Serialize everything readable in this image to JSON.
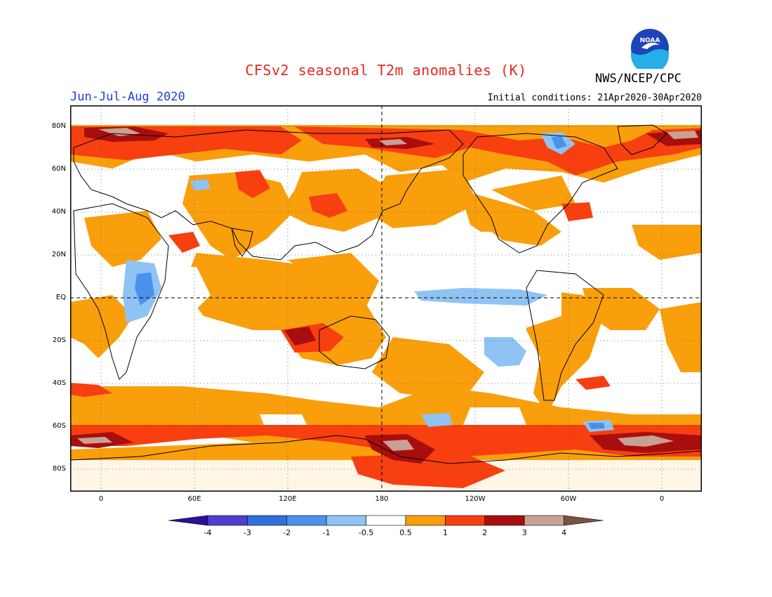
{
  "title": "CFSv2 seasonal T2m anomalies (K)",
  "season": "Jun-Jul-Aug 2020",
  "agency": "NWS/NCEP/CPC",
  "initial_conditions": "Initial conditions: 21Apr2020-30Apr2020",
  "logo": {
    "icon": "noaa-logo",
    "text": "NOAA"
  },
  "map": {
    "projection": "equirectangular",
    "lon_labels": [
      "0",
      "60E",
      "120E",
      "180",
      "120W",
      "60W",
      "0"
    ],
    "lat_labels": [
      "80N",
      "60N",
      "40N",
      "20N",
      "EQ",
      "20S",
      "40S",
      "60S",
      "80S"
    ],
    "reference_lines": [
      "equator",
      "dateline"
    ],
    "grid": "dotted"
  },
  "colorbar": {
    "labels": [
      "-4",
      "-3",
      "-2",
      "-1",
      "-0.5",
      "0.5",
      "1",
      "2",
      "3",
      "4"
    ],
    "colors": [
      "#2a0f9a",
      "#4f3fd0",
      "#2f6fdc",
      "#4a92ec",
      "#8fc3f4",
      "#ffffff",
      "#f99f0c",
      "#f73f10",
      "#a90e0e",
      "#c8a193",
      "#7a5245"
    ]
  }
}
